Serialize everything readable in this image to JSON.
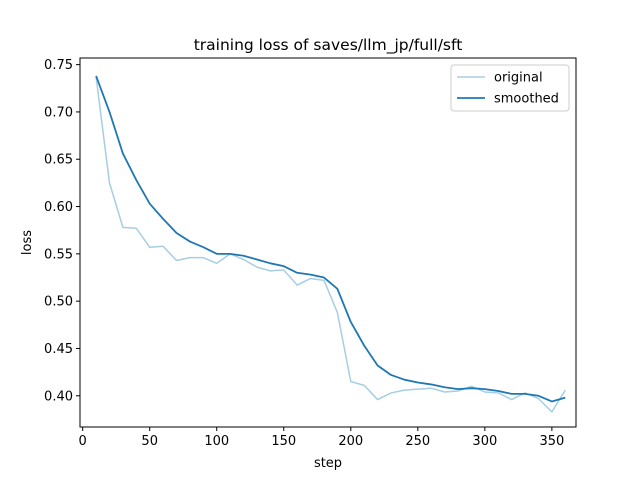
{
  "chart_data": {
    "type": "line",
    "title": "training loss of saves/llm_jp/full/sft",
    "xlabel": "step",
    "ylabel": "loss",
    "xlim": [
      -2,
      368
    ],
    "ylim": [
      0.367,
      0.757
    ],
    "xticks": [
      0,
      50,
      100,
      150,
      200,
      250,
      300,
      350
    ],
    "yticks": [
      0.4,
      0.45,
      0.5,
      0.55,
      0.6,
      0.65,
      0.7,
      0.75
    ],
    "ytick_labels": [
      "0.40",
      "0.45",
      "0.50",
      "0.55",
      "0.60",
      "0.65",
      "0.70",
      "0.75"
    ],
    "grid": false,
    "legend_position": "top-right",
    "x": [
      10,
      20,
      30,
      40,
      50,
      60,
      70,
      80,
      90,
      100,
      110,
      120,
      130,
      140,
      150,
      160,
      170,
      180,
      190,
      200,
      210,
      220,
      230,
      240,
      250,
      260,
      270,
      280,
      290,
      300,
      310,
      320,
      330,
      340,
      350,
      360
    ],
    "series": [
      {
        "name": "original",
        "color": "#a6cee3",
        "values": [
          0.737,
          0.625,
          0.578,
          0.577,
          0.557,
          0.558,
          0.543,
          0.546,
          0.546,
          0.54,
          0.55,
          0.544,
          0.536,
          0.532,
          0.533,
          0.517,
          0.524,
          0.522,
          0.488,
          0.415,
          0.411,
          0.396,
          0.403,
          0.406,
          0.407,
          0.408,
          0.404,
          0.405,
          0.41,
          0.404,
          0.403,
          0.396,
          0.403,
          0.397,
          0.383,
          0.406
        ]
      },
      {
        "name": "smoothed",
        "color": "#1f78b4",
        "values": [
          0.738,
          0.7,
          0.656,
          0.628,
          0.603,
          0.587,
          0.572,
          0.563,
          0.557,
          0.55,
          0.55,
          0.548,
          0.544,
          0.54,
          0.537,
          0.53,
          0.528,
          0.525,
          0.513,
          0.478,
          0.453,
          0.432,
          0.422,
          0.417,
          0.414,
          0.412,
          0.409,
          0.407,
          0.408,
          0.407,
          0.405,
          0.402,
          0.402,
          0.4,
          0.394,
          0.398
        ]
      }
    ]
  }
}
